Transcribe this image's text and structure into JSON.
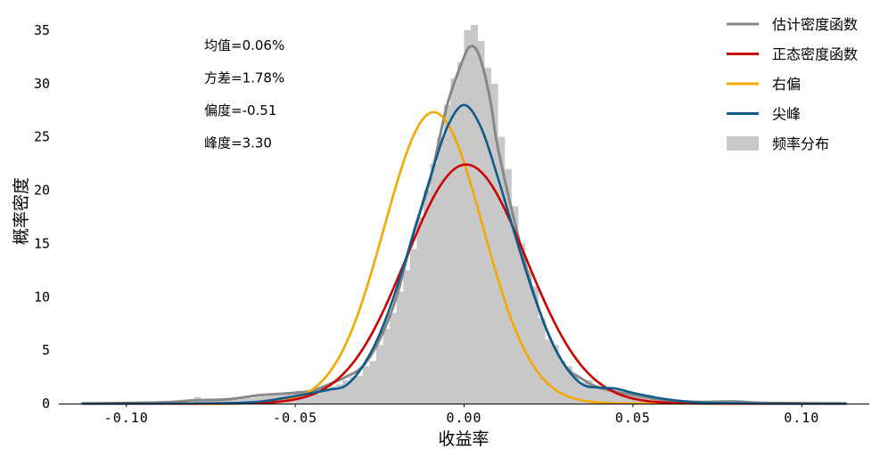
{
  "chart_data": {
    "type": "bar",
    "xlabel": "收益率",
    "ylabel": "概率密度",
    "xlim": [
      -0.12,
      0.12
    ],
    "ylim": [
      0,
      35
    ],
    "x_ticks": [
      -0.1,
      -0.05,
      0.0,
      0.05,
      0.1
    ],
    "x_tick_labels": [
      "-0.10",
      "-0.05",
      "0.00",
      "0.05",
      "0.10"
    ],
    "y_ticks": [
      0,
      5,
      10,
      15,
      20,
      25,
      30,
      35
    ],
    "y_tick_labels": [
      "0",
      "5",
      "10",
      "15",
      "20",
      "25",
      "30",
      "35"
    ],
    "grid": false,
    "legend_position": "top-right",
    "stats_text": [
      "均值=0.06%",
      "方差=1.78%",
      "偏度=-0.51",
      "峰度=3.30"
    ],
    "series": [
      {
        "name": "估计密度函数",
        "kind": "line",
        "color": "#888888",
        "x": [
          -0.113,
          -0.09,
          -0.08,
          -0.07,
          -0.06,
          -0.05,
          -0.045,
          -0.04,
          -0.035,
          -0.03,
          -0.025,
          -0.02,
          -0.015,
          -0.01,
          -0.005,
          0.0,
          0.002,
          0.004,
          0.006,
          0.008,
          0.01,
          0.015,
          0.02,
          0.025,
          0.03,
          0.035,
          0.04,
          0.05,
          0.06,
          0.07,
          0.08,
          0.09,
          0.113
        ],
        "y": [
          0,
          0.1,
          0.3,
          0.4,
          0.8,
          1.0,
          1.2,
          1.8,
          2.5,
          3.5,
          6,
          10,
          16,
          21,
          28,
          32.5,
          33.5,
          33,
          31,
          28,
          24,
          17,
          11,
          6.5,
          3.5,
          2.3,
          1.5,
          0.8,
          0.3,
          0.15,
          0.2,
          0.05,
          0
        ]
      },
      {
        "name": "正态密度函数",
        "kind": "normal",
        "color": "#cc0000",
        "mean": 0.0006,
        "std": 0.0178
      },
      {
        "name": "右偏",
        "kind": "normal",
        "color": "#f5a800",
        "mean": -0.009,
        "std": 0.0146
      },
      {
        "name": "尖峰",
        "kind": "line",
        "color": "#0f5c8a",
        "x": [
          -0.113,
          -0.09,
          -0.07,
          -0.06,
          -0.05,
          -0.045,
          -0.04,
          -0.035,
          -0.03,
          -0.025,
          -0.02,
          -0.015,
          -0.01,
          -0.005,
          0.0,
          0.005,
          0.01,
          0.015,
          0.02,
          0.025,
          0.03,
          0.035,
          0.04,
          0.045,
          0.05,
          0.06,
          0.07,
          0.08,
          0.09,
          0.113
        ],
        "y": [
          0,
          0,
          0.05,
          0.2,
          0.7,
          1.0,
          1.3,
          1.7,
          3.5,
          6.5,
          10.8,
          15.9,
          21.2,
          25.9,
          28,
          25.9,
          21.2,
          15.9,
          10.8,
          6.5,
          3.5,
          1.8,
          1.5,
          1.4,
          1.0,
          0.4,
          0.1,
          0.03,
          0,
          0
        ]
      },
      {
        "name": "频率分布",
        "kind": "histogram",
        "color": "#c8c8c8",
        "bin_width": 0.002,
        "bin_starts": [
          -0.08,
          -0.078,
          -0.076,
          -0.074,
          -0.072,
          -0.07,
          -0.068,
          -0.066,
          -0.064,
          -0.062,
          -0.06,
          -0.058,
          -0.056,
          -0.054,
          -0.052,
          -0.05,
          -0.048,
          -0.046,
          -0.044,
          -0.042,
          -0.04,
          -0.038,
          -0.036,
          -0.034,
          -0.032,
          -0.03,
          -0.028,
          -0.026,
          -0.024,
          -0.022,
          -0.02,
          -0.018,
          -0.016,
          -0.014,
          -0.012,
          -0.01,
          -0.008,
          -0.006,
          -0.004,
          -0.002,
          0.0,
          0.002,
          0.004,
          0.006,
          0.008,
          0.01,
          0.012,
          0.014,
          0.016,
          0.018,
          0.02,
          0.022,
          0.024,
          0.026,
          0.028,
          0.03,
          0.032,
          0.034,
          0.036,
          0.038,
          0.04,
          0.042,
          0.044,
          0.046,
          0.048,
          0.05,
          0.052,
          0.054,
          0.056,
          0.058,
          0.06,
          0.062,
          0.064,
          0.066,
          0.068,
          0.07,
          0.072,
          0.074,
          0.076,
          0.078,
          0.08
        ],
        "values": [
          0.6,
          0.4,
          0.3,
          0.4,
          0.3,
          0.4,
          0.4,
          0.5,
          0.5,
          0.6,
          0.7,
          0.9,
          0.8,
          0.9,
          1.0,
          1.2,
          1.1,
          1.2,
          1.3,
          1.4,
          1.6,
          1.8,
          2.2,
          2.5,
          2.6,
          3.5,
          4.0,
          5.5,
          7.0,
          8.5,
          10.5,
          12.5,
          14.5,
          17.5,
          20.0,
          22.5,
          25.0,
          28.0,
          30.5,
          32.0,
          35.0,
          35.5,
          34.0,
          31.5,
          30.0,
          25.0,
          22.0,
          18.5,
          15.0,
          12.5,
          11.0,
          8.0,
          6.0,
          5.5,
          4.0,
          3.5,
          2.5,
          2.0,
          2.2,
          1.7,
          1.6,
          1.3,
          1.2,
          1.0,
          0.8,
          0.8,
          0.6,
          0.5,
          0.4,
          0.3,
          0.3,
          0.2,
          0.2,
          0.1,
          0.1,
          0.1,
          0.1,
          0.05,
          0.05,
          0.05,
          0.2
        ]
      }
    ]
  }
}
